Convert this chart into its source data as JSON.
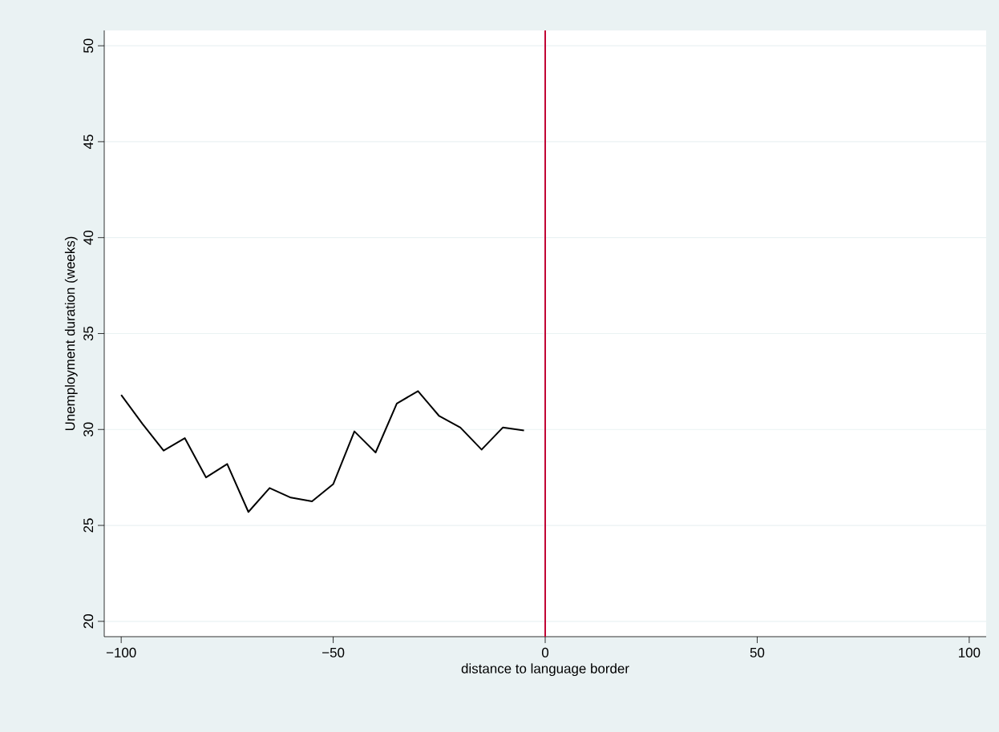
{
  "chart_data": {
    "type": "line",
    "xlabel": "distance to language border",
    "ylabel": "Unemployment duration (weeks)",
    "x": [
      -100,
      -95,
      -90,
      -85,
      -80,
      -75,
      -70,
      -65,
      -60,
      -55,
      -50,
      -45,
      -40,
      -35,
      -30,
      -25,
      -20,
      -15,
      -10,
      -5
    ],
    "series": [
      {
        "color": "#000000",
        "values": [
          31.8,
          30.3,
          28.9,
          29.55,
          27.5,
          28.2,
          25.7,
          26.95,
          26.45,
          26.25,
          27.15,
          29.9,
          28.8,
          31.35,
          32.0,
          30.7,
          30.1,
          28.95,
          30.1,
          29.95
        ]
      }
    ],
    "xlim": [
      -104,
      104
    ],
    "ylim": [
      19.2,
      50.8
    ],
    "xticks": [
      {
        "value": -100,
        "label": "−100"
      },
      {
        "value": -50,
        "label": "−50"
      },
      0,
      50,
      100
    ],
    "yticks": [
      20,
      25,
      30,
      35,
      40,
      45,
      50
    ],
    "grid": "y",
    "marker": "none",
    "line_style": "solid",
    "ref_lines": [
      {
        "axis": "x",
        "value": 0,
        "color": "#c10534"
      }
    ]
  }
}
